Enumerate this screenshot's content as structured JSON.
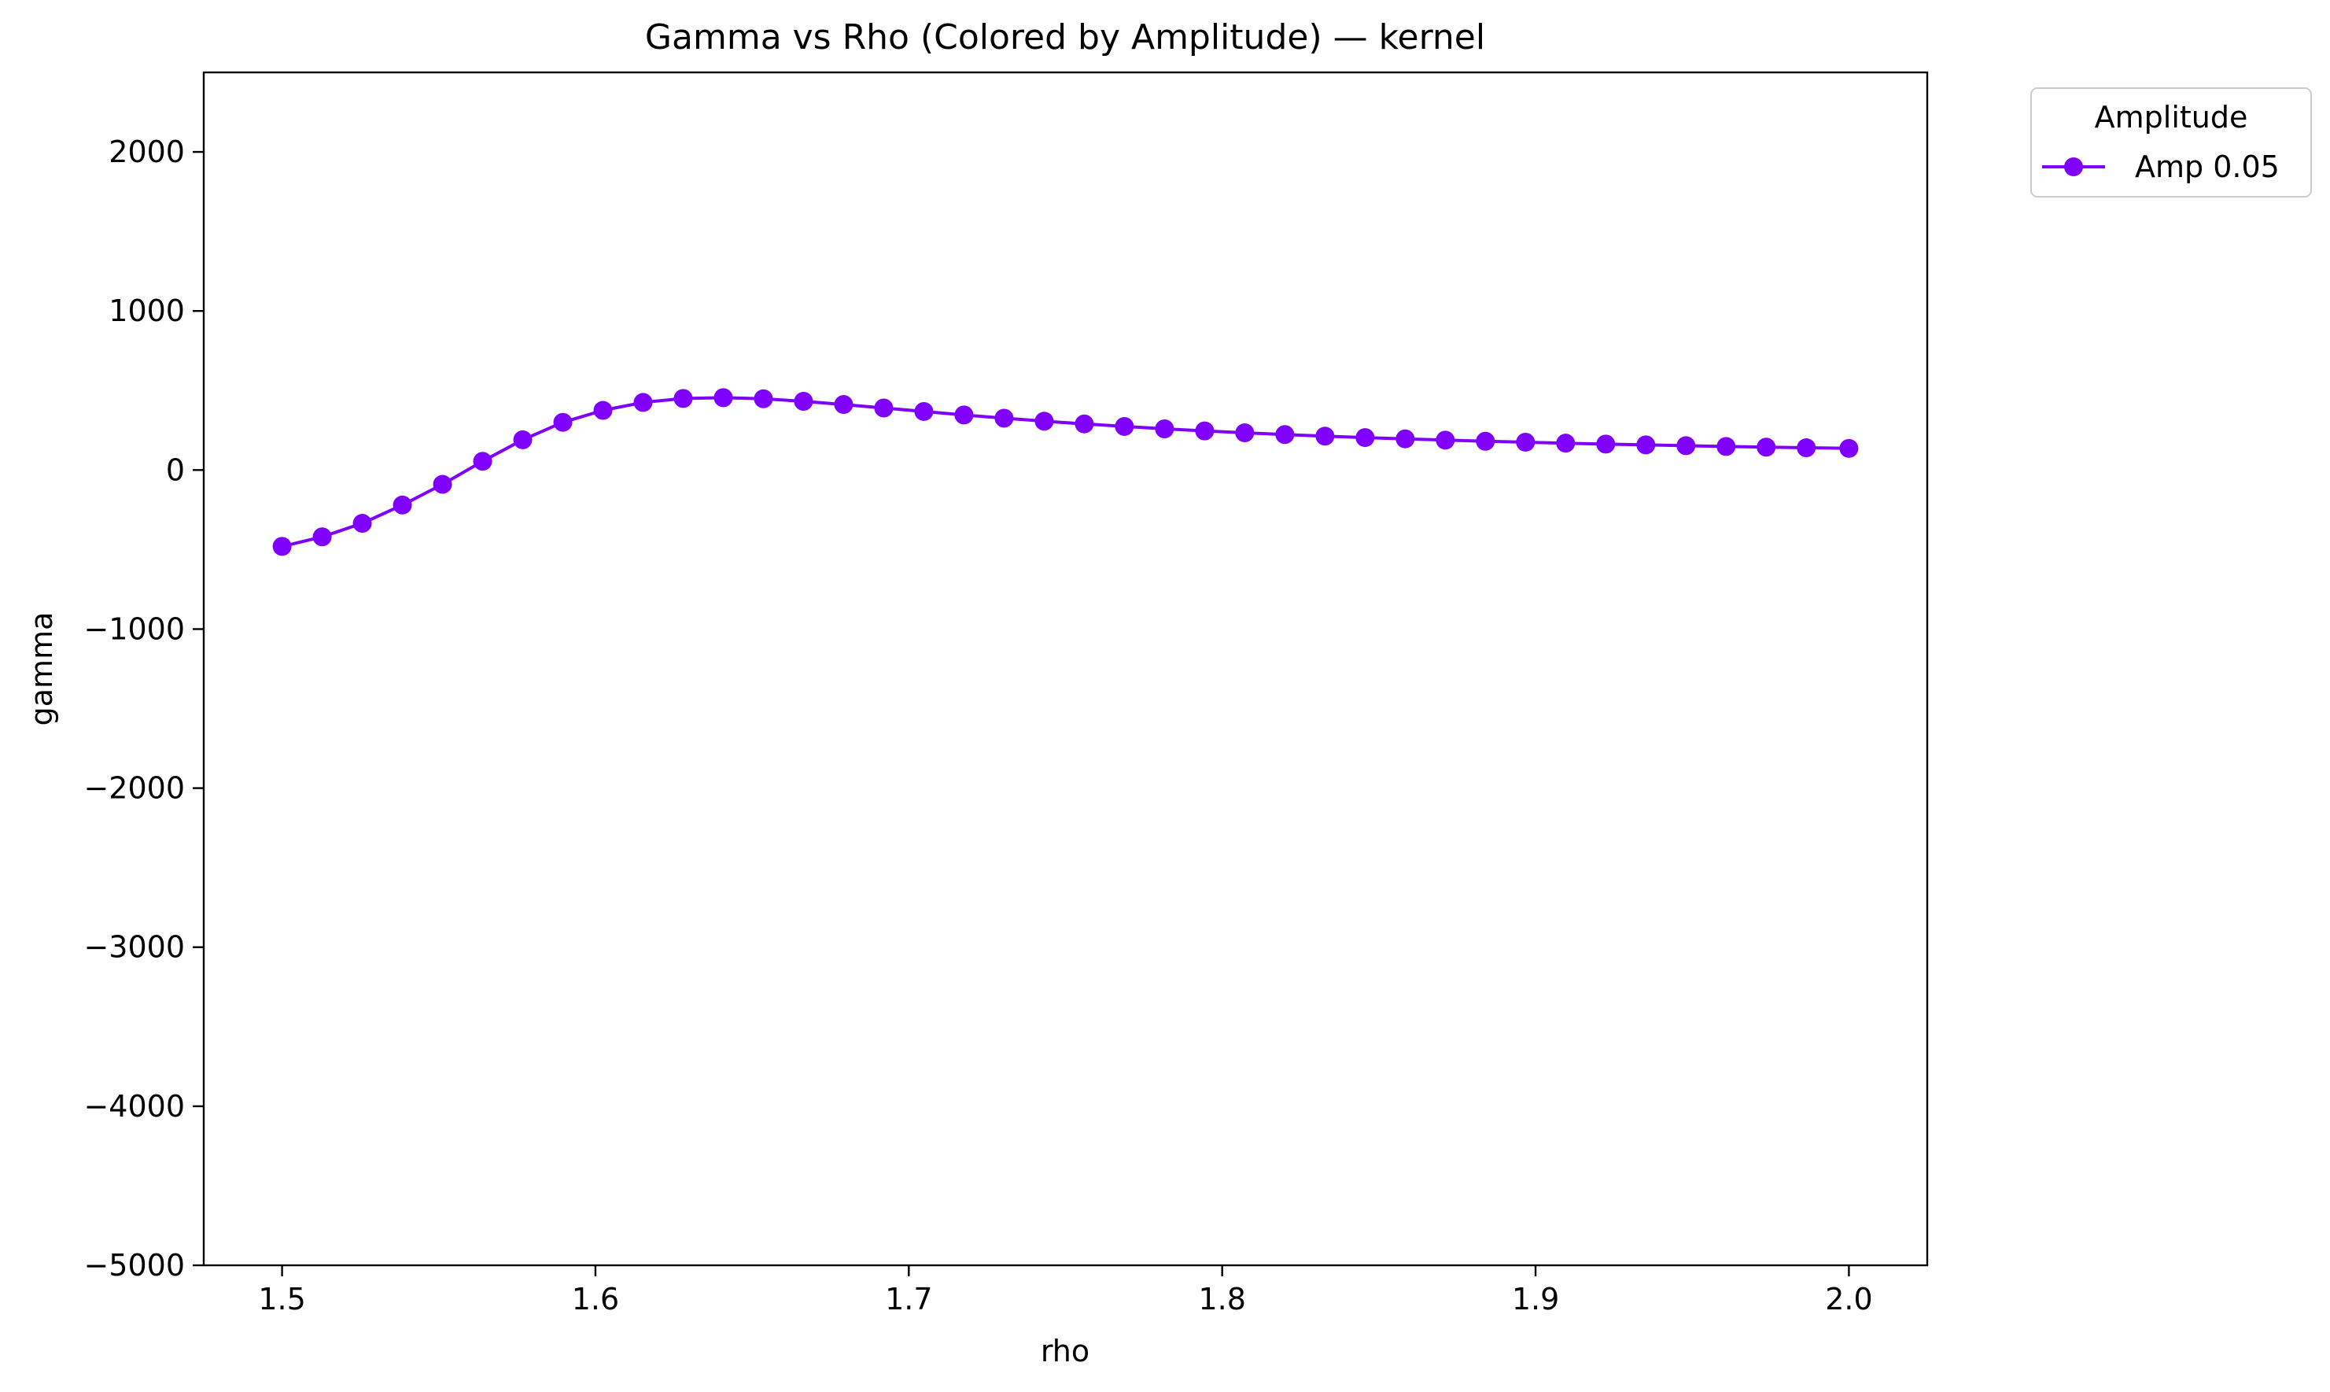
{
  "chart_data": {
    "type": "line",
    "title": "Gamma vs Rho (Colored by Amplitude) — kernel",
    "xlabel": "rho",
    "ylabel": "gamma",
    "xlim": [
      1.475,
      2.025
    ],
    "ylim": [
      -5000,
      2500
    ],
    "x_ticks": [
      1.5,
      1.6,
      1.7,
      1.8,
      1.9,
      2.0
    ],
    "x_tick_labels": [
      "1.5",
      "1.6",
      "1.7",
      "1.8",
      "1.9",
      "2.0"
    ],
    "y_ticks": [
      -5000,
      -4000,
      -3000,
      -2000,
      -1000,
      0,
      1000,
      2000
    ],
    "y_tick_labels": [
      "−5000",
      "−4000",
      "−3000",
      "−2000",
      "−1000",
      "0",
      "1000",
      "2000"
    ],
    "grid": false,
    "legend": {
      "title": "Amplitude",
      "placement": "outside-top-right"
    },
    "series": [
      {
        "name": "Amp 0.05",
        "color": "#8000ff",
        "marker": "circle",
        "x": [
          1.5,
          1.5128,
          1.5256,
          1.5384,
          1.5512,
          1.564,
          1.5768,
          1.5896,
          1.6024,
          1.6152,
          1.628,
          1.6408,
          1.6536,
          1.6664,
          1.6792,
          1.692,
          1.7048,
          1.7176,
          1.7304,
          1.7432,
          1.756,
          1.7688,
          1.7816,
          1.7944,
          1.8072,
          1.82,
          1.8328,
          1.8456,
          1.8584,
          1.8712,
          1.884,
          1.8968,
          1.9096,
          1.9224,
          1.9352,
          1.948,
          1.9608,
          1.9736,
          1.9864,
          2.0
        ],
        "y": [
          -480,
          -420,
          -335,
          -220,
          -90,
          55,
          190,
          300,
          375,
          425,
          450,
          455,
          448,
          432,
          412,
          390,
          368,
          346,
          326,
          307,
          290,
          274,
          259,
          246,
          234,
          223,
          213,
          204,
          196,
          188,
          181,
          175,
          169,
          163,
          158,
          153,
          148,
          144,
          140,
          136
        ]
      }
    ]
  }
}
